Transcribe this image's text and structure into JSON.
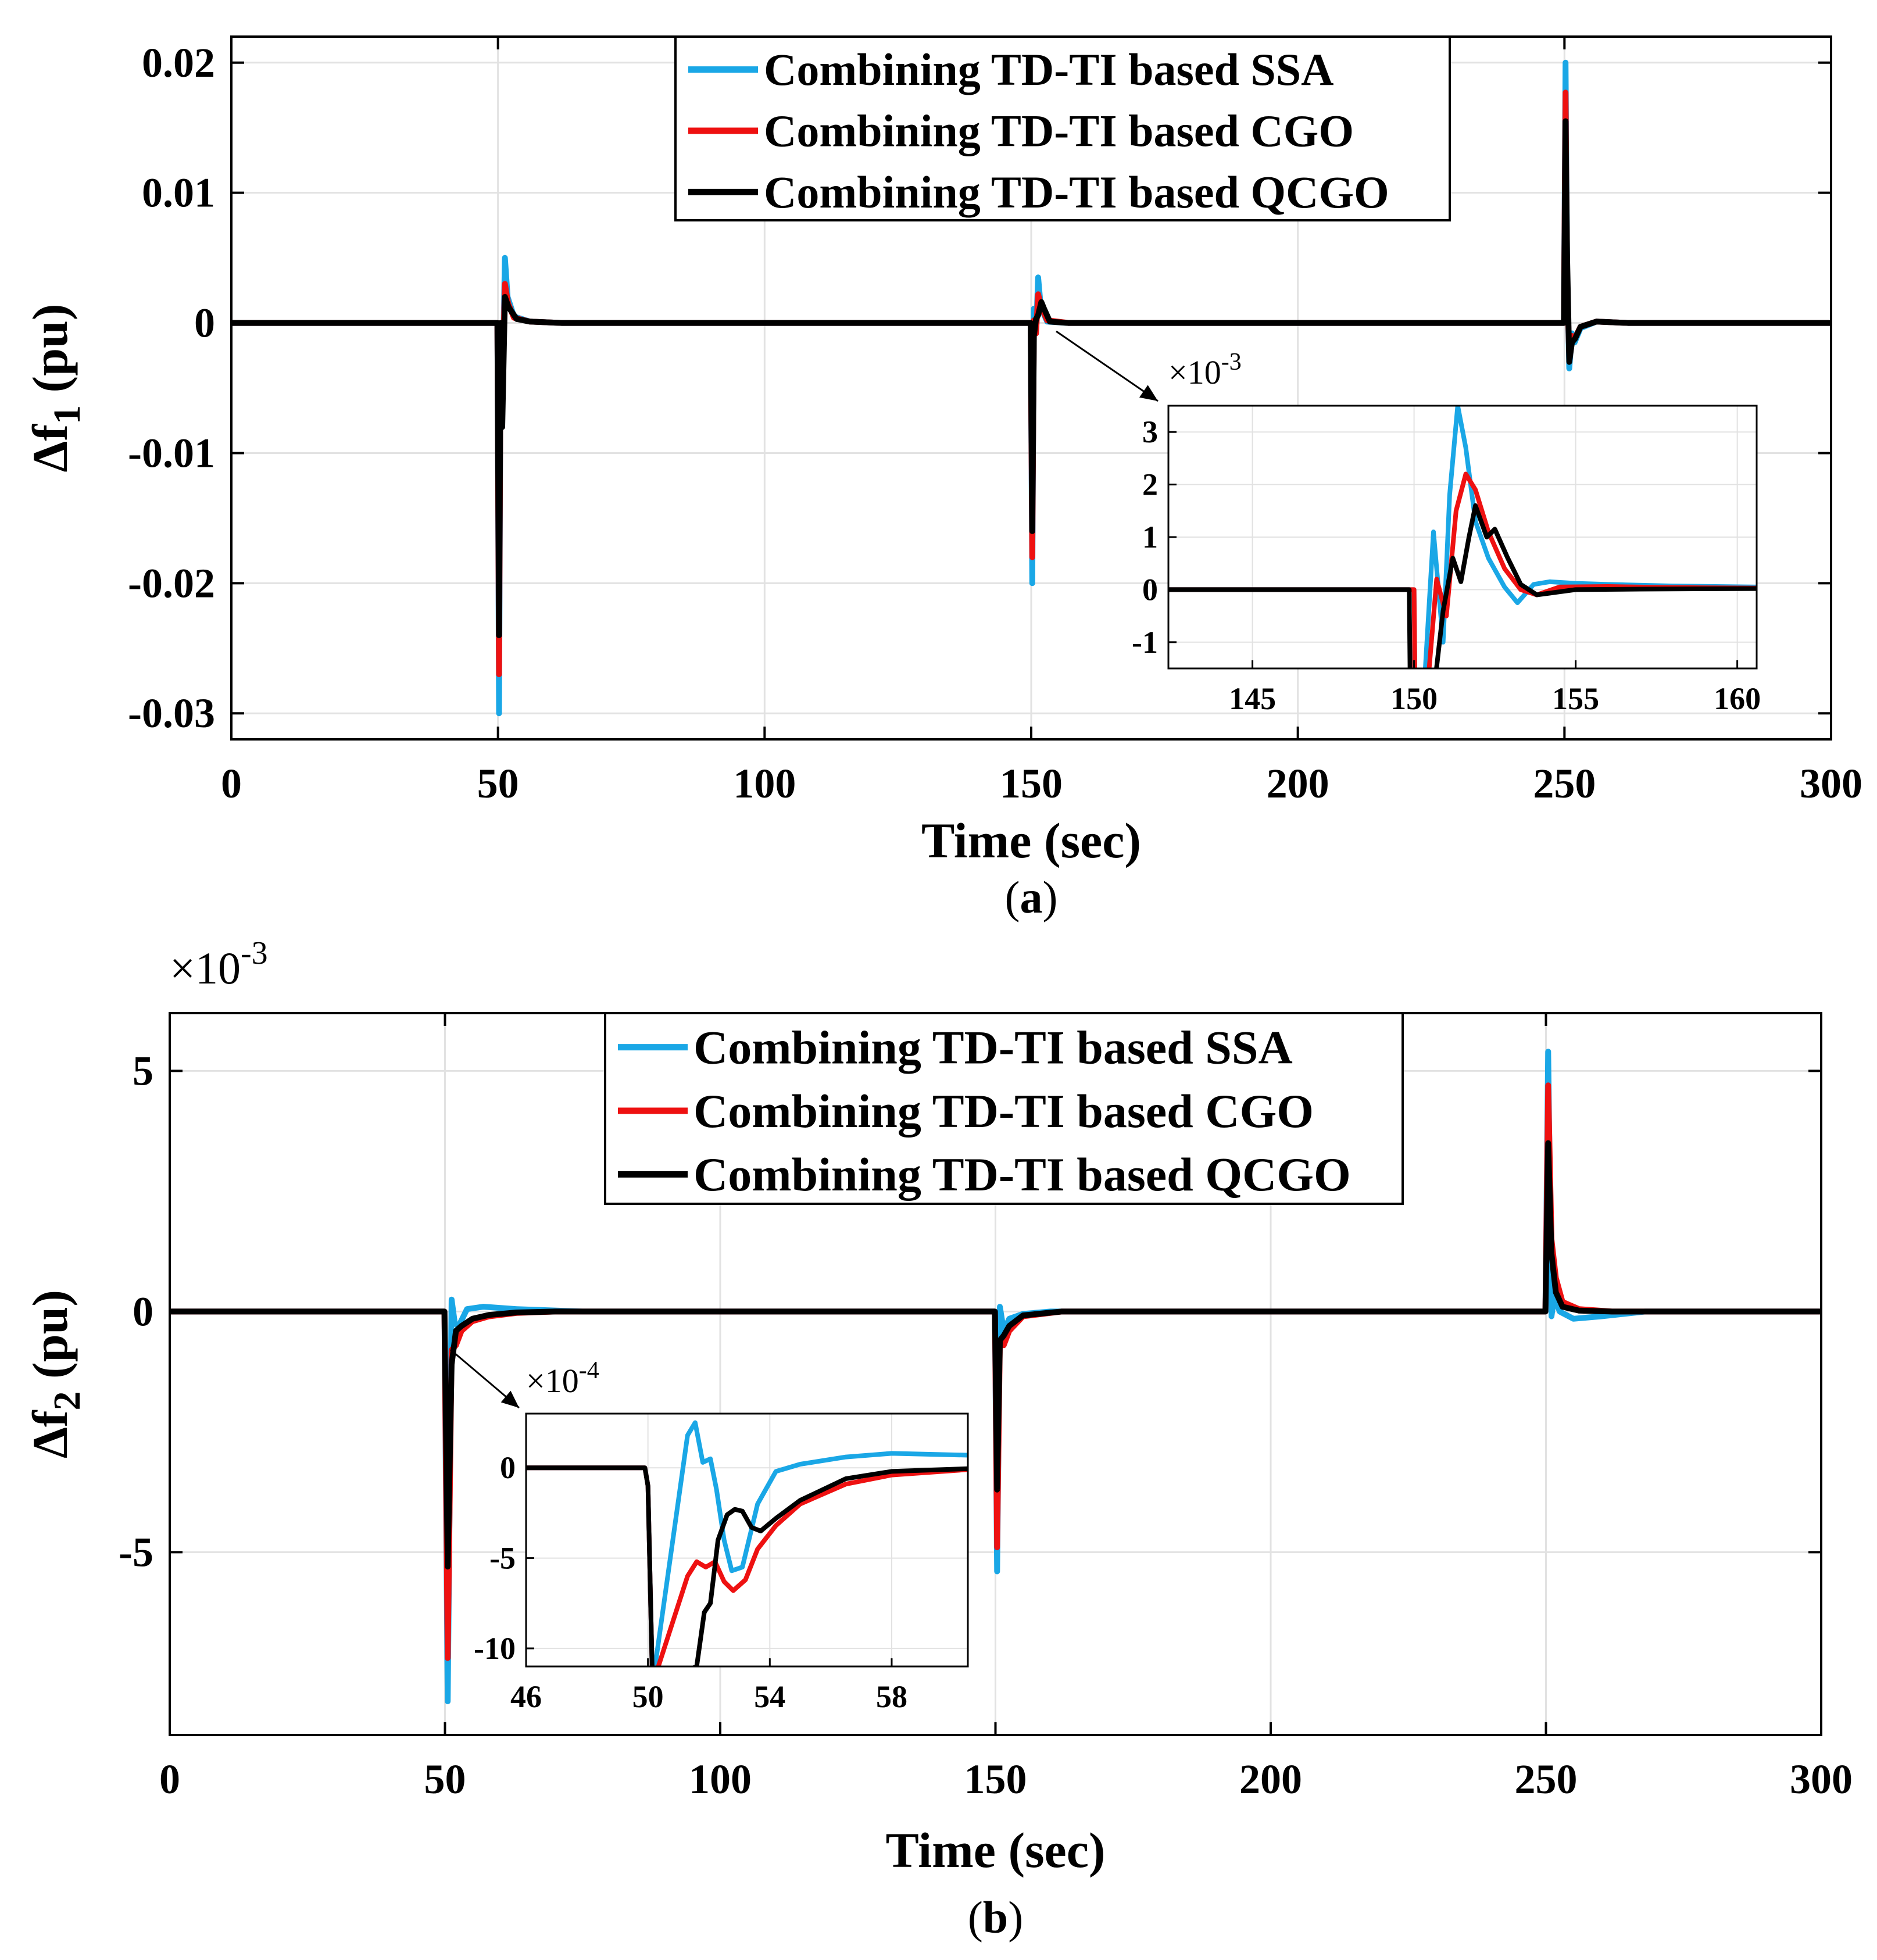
{
  "figure": {
    "colors": {
      "SSA": "#1aa7e6",
      "CGO": "#ee1111",
      "QCGO": "#000000",
      "grid": "#e2e2e2"
    }
  },
  "chart_data": [
    {
      "type": "line",
      "panel_label": "(a)",
      "panel_text": "a",
      "xlabel": "Time (sec)",
      "ylabel_main": "Δf",
      "ylabel_sub": "1",
      "ylabel_unit": " (pu)",
      "xlim": [
        0,
        300
      ],
      "ylim": [
        -0.032,
        0.022
      ],
      "xticks": [
        0,
        50,
        100,
        150,
        200,
        250,
        300
      ],
      "xtick_labels": [
        "0",
        "50",
        "100",
        "150",
        "200",
        "250",
        "300"
      ],
      "yticks": [
        -0.03,
        -0.02,
        -0.01,
        0,
        0.01,
        0.02
      ],
      "ytick_labels": [
        "-0.03",
        "-0.02",
        "-0.01",
        "0",
        "0.01",
        "0.02"
      ],
      "legend": [
        "Combining TD-TI based SSA",
        "Combining TD-TI based CGO",
        "Combining TD-TI based QCGO"
      ],
      "series": [
        {
          "name": "Combining TD-TI based SSA",
          "x": [
            0,
            49.9,
            50.2,
            50.5,
            50.8,
            51.3,
            51.8,
            53,
            56,
            62,
            149.9,
            150.2,
            150.5,
            150.9,
            151.3,
            151.8,
            153,
            157,
            249.9,
            250.2,
            250.5,
            250.9,
            251.4,
            251.9,
            253,
            256,
            262,
            300
          ],
          "y": [
            0,
            0,
            -0.03,
            0.0,
            -0.006,
            0.005,
            0.002,
            0.0005,
            0.0001,
            0,
            0,
            -0.02,
            0.0011,
            -0.0008,
            0.0035,
            0.0012,
            0.0001,
            0,
            0,
            0.02,
            0.004,
            -0.0035,
            -0.0008,
            -0.0015,
            -0.0004,
            0.0001,
            0,
            0
          ]
        },
        {
          "name": "Combining TD-TI based CGO",
          "x": [
            0,
            49.9,
            50.2,
            50.5,
            50.8,
            51.3,
            51.9,
            53,
            56,
            62,
            149.9,
            150.2,
            150.5,
            150.9,
            151.3,
            151.9,
            153,
            157,
            249.9,
            250.2,
            250.5,
            250.9,
            251.4,
            251.9,
            253,
            256,
            262,
            300
          ],
          "y": [
            0,
            0,
            -0.027,
            0.0,
            -0.005,
            0.003,
            0.0015,
            0.0004,
            0.0001,
            0,
            0,
            -0.018,
            0.0002,
            -0.0008,
            0.0022,
            0.0012,
            0.0002,
            0,
            0,
            0.0177,
            0.003,
            -0.0025,
            -0.001,
            -0.0012,
            -0.0003,
            0.0001,
            0,
            0
          ]
        },
        {
          "name": "Combining TD-TI based QCGO",
          "x": [
            0,
            49.9,
            50.2,
            50.5,
            50.8,
            51.3,
            52,
            53.5,
            56,
            62,
            149.9,
            150.2,
            150.5,
            150.9,
            151.3,
            151.9,
            152.4,
            153.5,
            157,
            249.9,
            250.2,
            250.5,
            250.9,
            251.4,
            252,
            253,
            256,
            262,
            300
          ],
          "y": [
            0,
            0,
            -0.024,
            0.0,
            -0.008,
            0.002,
            0.0012,
            0.0003,
            0.0001,
            0,
            0,
            -0.016,
            -0.001,
            0.0003,
            0.0006,
            0.0016,
            0.0011,
            0.0001,
            0,
            0,
            0.0155,
            0.005,
            -0.003,
            -0.0015,
            -0.0012,
            -0.0003,
            0.0001,
            0,
            0
          ]
        }
      ],
      "inset": {
        "multiplier_text": "×10",
        "multiplier_exp": "-3",
        "xlim": [
          142.4,
          160.6
        ],
        "ylim": [
          -1.5,
          3.5
        ],
        "xticks": [
          145,
          150,
          155,
          160
        ],
        "xtick_labels": [
          "145",
          "150",
          "155",
          "160"
        ],
        "yticks": [
          -1,
          0,
          1,
          2,
          3
        ],
        "ytick_labels": [
          "-1",
          "0",
          "1",
          "2",
          "3"
        ],
        "series": [
          {
            "name": "Combining TD-TI based SSA",
            "x": [
              142.4,
              150.0,
              150.05,
              150.3,
              150.6,
              150.9,
              151.1,
              151.35,
              151.6,
              151.9,
              152.3,
              152.8,
              153.2,
              153.7,
              154.2,
              155.0,
              156,
              158,
              160.6
            ],
            "y": [
              0,
              0,
              -3,
              -2,
              1.1,
              -1.0,
              1.8,
              3.5,
              2.7,
              1.3,
              0.6,
              0.05,
              -0.25,
              0.1,
              0.15,
              0.12,
              0.1,
              0.07,
              0.05
            ]
          },
          {
            "name": "Combining TD-TI based CGO",
            "x": [
              142.4,
              150.0,
              150.05,
              150.4,
              150.7,
              151.0,
              151.3,
              151.6,
              151.9,
              152.3,
              152.8,
              153.3,
              153.8,
              154.5,
              156,
              158,
              160.6
            ],
            "y": [
              0,
              0,
              -3,
              -2,
              0.2,
              -0.5,
              1.5,
              2.2,
              1.9,
              1.1,
              0.4,
              0.0,
              -0.1,
              0.05,
              0.06,
              0.04,
              0.03
            ]
          },
          {
            "name": "Combining TD-TI based QCGO",
            "x": [
              142.4,
              149.85,
              149.9,
              150.6,
              150.9,
              151.2,
              151.45,
              151.7,
              151.9,
              152.25,
              152.5,
              152.9,
              153.3,
              153.8,
              154.4,
              155,
              157,
              160.6
            ],
            "y": [
              0,
              0,
              -3,
              -2,
              -0.4,
              0.6,
              0.15,
              1.0,
              1.6,
              1.0,
              1.15,
              0.6,
              0.1,
              -0.1,
              -0.05,
              0.0,
              0.01,
              0.02
            ]
          }
        ]
      }
    },
    {
      "type": "line",
      "panel_label": "(b)",
      "panel_text": "b",
      "xlabel": "Time (sec)",
      "ylabel_main": "Δf",
      "ylabel_sub": "2",
      "ylabel_unit": " (pu)",
      "multiplier_text": "×10",
      "multiplier_exp": "-3",
      "xlim": [
        0,
        300
      ],
      "ylim": [
        -8.8,
        6.2
      ],
      "xticks": [
        0,
        50,
        100,
        150,
        200,
        250,
        300
      ],
      "xtick_labels": [
        "0",
        "50",
        "100",
        "150",
        "200",
        "250",
        "300"
      ],
      "yticks": [
        -5,
        0,
        5
      ],
      "ytick_labels": [
        "-5",
        "0",
        "5"
      ],
      "legend": [
        "Combining TD-TI based SSA",
        "Combining TD-TI based CGO",
        "Combining TD-TI based QCGO"
      ],
      "series": [
        {
          "name": "Combining TD-TI based SSA",
          "x": [
            0,
            49.9,
            50.5,
            51.2,
            51.8,
            52.5,
            54,
            57,
            63,
            75,
            149.9,
            150.3,
            150.8,
            151.5,
            152.5,
            155,
            160,
            249.9,
            250.4,
            251,
            251.5,
            252.5,
            255,
            260,
            268,
            300
          ],
          "y": [
            0,
            0,
            -8.1,
            0.25,
            -0.25,
            -0.3,
            0.05,
            0.1,
            0.05,
            0,
            0,
            -5.4,
            0.1,
            -0.4,
            -0.15,
            -0.05,
            0,
            0,
            5.4,
            -0.1,
            0.3,
            0.0,
            -0.15,
            -0.1,
            0,
            0
          ]
        },
        {
          "name": "Combining TD-TI based CGO",
          "x": [
            0,
            49.9,
            50.5,
            51.2,
            52,
            53,
            55,
            58,
            63,
            70,
            149.9,
            150.3,
            150.8,
            151.5,
            152.5,
            155,
            162,
            249.9,
            250.4,
            251,
            251.8,
            253,
            256,
            262,
            300
          ],
          "y": [
            0,
            0,
            -7.2,
            -0.8,
            -0.7,
            -0.4,
            -0.2,
            -0.1,
            -0.03,
            0,
            0,
            -4.9,
            -0.6,
            -0.7,
            -0.4,
            -0.1,
            0,
            0,
            4.7,
            1.5,
            0.7,
            0.2,
            0.05,
            0,
            0
          ]
        },
        {
          "name": "Combining TD-TI based QCGO",
          "x": [
            0,
            49.9,
            50.5,
            51.2,
            52,
            53,
            55,
            58,
            63,
            70,
            149.9,
            150.3,
            150.8,
            151.5,
            152.5,
            155,
            162,
            249.9,
            250.4,
            251,
            251.8,
            253,
            256,
            262,
            300
          ],
          "y": [
            0,
            0,
            -5.3,
            -1.1,
            -0.4,
            -0.3,
            -0.15,
            -0.07,
            -0.02,
            0,
            0,
            -3.7,
            -0.6,
            -0.5,
            -0.3,
            -0.08,
            0,
            0,
            3.5,
            1.2,
            0.4,
            0.1,
            0.02,
            0,
            0
          ]
        }
      ],
      "inset": {
        "multiplier_text": "×10",
        "multiplier_exp": "-4",
        "xlim": [
          46,
          60.5
        ],
        "ylim": [
          -11,
          3
        ],
        "xticks": [
          46,
          50,
          54,
          58
        ],
        "xtick_labels": [
          "46",
          "50",
          "54",
          "58"
        ],
        "yticks": [
          -10,
          -5,
          0
        ],
        "ytick_labels": [
          "-10",
          "-5",
          "0"
        ],
        "series": [
          {
            "name": "Combining TD-TI based SSA",
            "x": [
              46,
              49.9,
              50.0,
              50.15,
              51.3,
              51.55,
              51.8,
              52.05,
              52.25,
              52.5,
              52.75,
              53.1,
              53.6,
              54.2,
              55,
              56.5,
              58,
              60.5
            ],
            "y": [
              0,
              0,
              -1,
              -12,
              1.8,
              2.5,
              0.3,
              0.5,
              -1.2,
              -4,
              -5.7,
              -5.5,
              -2,
              -0.2,
              0.2,
              0.6,
              0.8,
              0.7
            ]
          },
          {
            "name": "Combining TD-TI based CGO",
            "x": [
              46,
              49.9,
              50.0,
              50.15,
              51.3,
              51.6,
              51.9,
              52.2,
              52.5,
              52.8,
              53.2,
              53.6,
              54.2,
              55,
              56.5,
              58,
              60.5
            ],
            "y": [
              0,
              0,
              -1,
              -12,
              -6,
              -5.2,
              -5.5,
              -5.2,
              -6.3,
              -6.8,
              -6.2,
              -4.5,
              -3.2,
              -2,
              -0.9,
              -0.4,
              -0.1
            ]
          },
          {
            "name": "Combining TD-TI based QCGO",
            "x": [
              46,
              49.9,
              50.0,
              50.15,
              51.6,
              51.85,
              52.05,
              52.3,
              52.6,
              52.85,
              53.1,
              53.4,
              53.7,
              54.2,
              55,
              56.5,
              58,
              60.5
            ],
            "y": [
              0,
              0,
              -1,
              -12,
              -11,
              -8,
              -7.5,
              -4,
              -2.6,
              -2.3,
              -2.4,
              -3.3,
              -3.5,
              -2.8,
              -1.8,
              -0.6,
              -0.2,
              -0.05
            ]
          }
        ]
      }
    }
  ]
}
